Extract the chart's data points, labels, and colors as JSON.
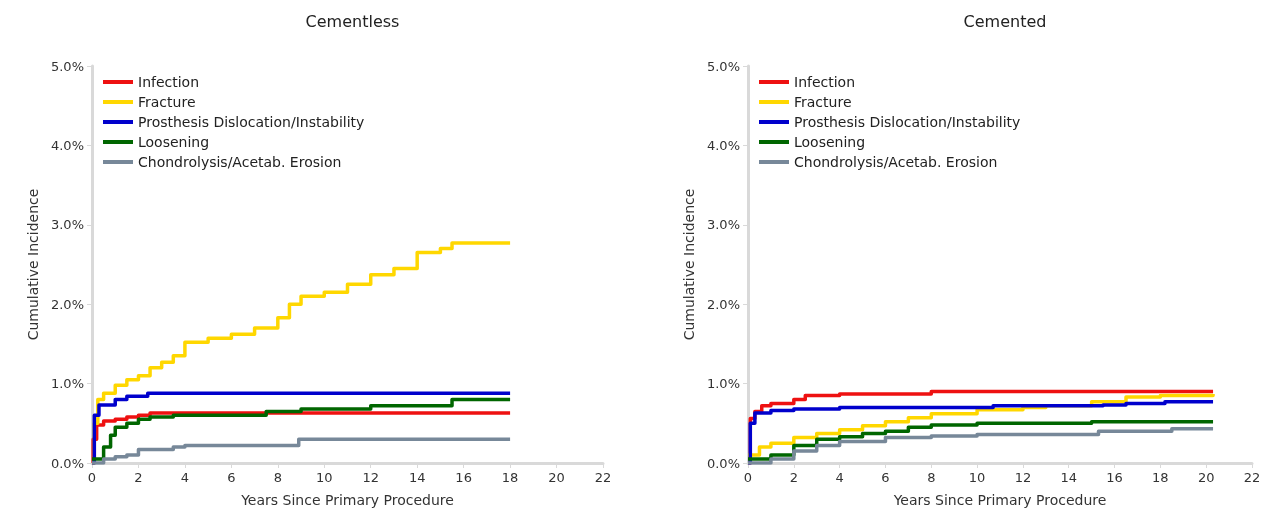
{
  "chart_data": [
    {
      "type": "step",
      "title": "Cementless",
      "xlabel": "Years Since Primary Procedure",
      "ylabel": "Cumulative Incidence",
      "xlim": [
        0,
        22
      ],
      "xticks": [
        0,
        2,
        4,
        6,
        8,
        10,
        12,
        14,
        16,
        18,
        20,
        22
      ],
      "ylim": [
        0,
        5
      ],
      "yticks": [
        {
          "value": 0,
          "label": "0.0%"
        },
        {
          "value": 1,
          "label": "1.0%"
        },
        {
          "value": 2,
          "label": "2.0%"
        },
        {
          "value": 3,
          "label": "3.0%"
        },
        {
          "value": 4,
          "label": "4.0%"
        },
        {
          "value": 5,
          "label": "5.0%"
        }
      ],
      "grid": false,
      "legend": "top left",
      "marker": "none",
      "line_style": "solid",
      "series": [
        {
          "name": "Infection",
          "color": "#ee1111",
          "x": [
            0,
            0.05,
            0.2,
            0.5,
            1,
            1.5,
            2,
            2.5,
            18
          ],
          "values": [
            0,
            0.3,
            0.48,
            0.53,
            0.55,
            0.58,
            0.6,
            0.63,
            0.63
          ]
        },
        {
          "name": "Fracture",
          "color": "#ffd700",
          "x": [
            0,
            0.1,
            0.25,
            0.5,
            1,
            1.5,
            2,
            2.5,
            3,
            3.5,
            4,
            5,
            6,
            7,
            8,
            8.5,
            9,
            10,
            11,
            12,
            13,
            14,
            15,
            15.5,
            18
          ],
          "values": [
            0,
            0.5,
            0.8,
            0.88,
            0.98,
            1.05,
            1.1,
            1.2,
            1.27,
            1.35,
            1.52,
            1.57,
            1.62,
            1.7,
            1.83,
            2.0,
            2.1,
            2.15,
            2.25,
            2.37,
            2.45,
            2.65,
            2.7,
            2.77,
            2.77
          ]
        },
        {
          "name": "Prosthesis Dislocation/Instability",
          "color": "#0000cc",
          "x": [
            0,
            0.1,
            0.3,
            1,
            1.5,
            2.4,
            18
          ],
          "values": [
            0,
            0.6,
            0.73,
            0.8,
            0.84,
            0.88,
            0.88
          ]
        },
        {
          "name": "Loosening",
          "color": "#006600",
          "x": [
            0,
            0.5,
            0.8,
            1,
            1.5,
            2,
            2.5,
            3.5,
            7.5,
            9,
            12,
            15.5,
            18
          ],
          "values": [
            0.05,
            0.2,
            0.35,
            0.45,
            0.5,
            0.55,
            0.58,
            0.6,
            0.65,
            0.68,
            0.72,
            0.8,
            0.8
          ]
        },
        {
          "name": "Chondrolysis/Acetab. Erosion",
          "color": "#778899",
          "x": [
            0,
            0.5,
            1,
            1.5,
            2,
            3.5,
            4,
            8.9,
            18
          ],
          "values": [
            0,
            0.05,
            0.08,
            0.1,
            0.17,
            0.2,
            0.22,
            0.3,
            0.3
          ]
        }
      ]
    },
    {
      "type": "step",
      "title": "Cemented",
      "xlabel": "Years Since Primary Procedure",
      "ylabel": "Cumulative Incidence",
      "xlim": [
        0,
        22
      ],
      "xticks": [
        0,
        2,
        4,
        6,
        8,
        10,
        12,
        14,
        16,
        18,
        20,
        22
      ],
      "ylim": [
        0,
        5
      ],
      "yticks": [
        {
          "value": 0,
          "label": "0.0%"
        },
        {
          "value": 1,
          "label": "1.0%"
        },
        {
          "value": 2,
          "label": "2.0%"
        },
        {
          "value": 3,
          "label": "3.0%"
        },
        {
          "value": 4,
          "label": "4.0%"
        },
        {
          "value": 5,
          "label": "5.0%"
        }
      ],
      "grid": false,
      "legend": "top left",
      "marker": "none",
      "line_style": "solid",
      "series": [
        {
          "name": "Infection",
          "color": "#ee1111",
          "x": [
            0,
            0.1,
            0.3,
            0.6,
            1,
            2,
            2.5,
            4,
            8,
            20.3
          ],
          "values": [
            0,
            0.56,
            0.65,
            0.72,
            0.75,
            0.8,
            0.85,
            0.87,
            0.9,
            0.9
          ]
        },
        {
          "name": "Fracture",
          "color": "#ffd700",
          "x": [
            0,
            0.5,
            1,
            2,
            3,
            4,
            5,
            6,
            7,
            8,
            10,
            12,
            13,
            15,
            16.5,
            18,
            20.3
          ],
          "values": [
            0.1,
            0.2,
            0.25,
            0.32,
            0.37,
            0.42,
            0.47,
            0.52,
            0.57,
            0.62,
            0.67,
            0.7,
            0.72,
            0.77,
            0.83,
            0.85,
            0.87
          ]
        },
        {
          "name": "Prosthesis Dislocation/Instability",
          "color": "#0000cc",
          "x": [
            0,
            0.1,
            0.3,
            1,
            2,
            4,
            10.7,
            15.5,
            16.5,
            18.2,
            20.3
          ],
          "values": [
            0,
            0.5,
            0.63,
            0.66,
            0.68,
            0.7,
            0.72,
            0.73,
            0.75,
            0.77,
            0.77
          ]
        },
        {
          "name": "Loosening",
          "color": "#006600",
          "x": [
            0,
            1,
            2,
            3,
            4,
            5,
            6,
            7,
            8,
            10,
            15,
            20.3
          ],
          "values": [
            0.05,
            0.1,
            0.22,
            0.3,
            0.33,
            0.37,
            0.4,
            0.45,
            0.48,
            0.5,
            0.52,
            0.52
          ]
        },
        {
          "name": "Chondrolysis/Acetab. Erosion",
          "color": "#778899",
          "x": [
            0,
            1,
            2,
            3,
            4,
            6,
            8,
            10,
            15.3,
            18.5,
            20.3
          ],
          "values": [
            0,
            0.05,
            0.15,
            0.22,
            0.27,
            0.32,
            0.34,
            0.36,
            0.4,
            0.43,
            0.43
          ]
        }
      ]
    }
  ]
}
